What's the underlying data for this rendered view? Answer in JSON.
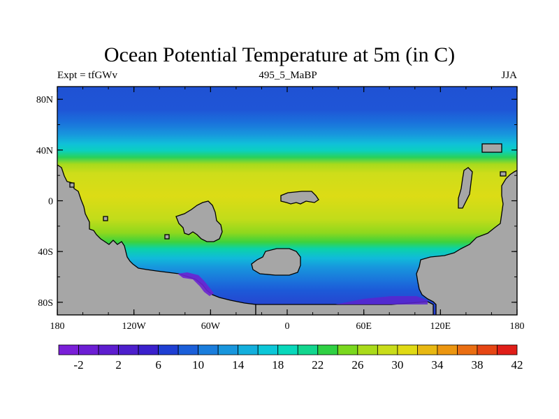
{
  "header": {
    "title": "Ocean Potential Temperature at 5m (in C)",
    "left_label": "Expt = tfGWv",
    "center_label": "495_5_MaBP",
    "right_label": "JJA"
  },
  "map": {
    "x_ticks": [
      "180",
      "120W",
      "60W",
      "0",
      "60E",
      "120E",
      "180"
    ],
    "y_ticks": [
      "80N",
      "40N",
      "0",
      "40S",
      "80S"
    ],
    "land_color": "#a6a6a6"
  },
  "colorbar": {
    "colors": [
      "#7a1fd8",
      "#6c1ed4",
      "#5d1dcf",
      "#4d1fcc",
      "#3a20cc",
      "#1f3fd3",
      "#1b5fd9",
      "#1a7ddc",
      "#1896dd",
      "#13afdd",
      "#0cc7d8",
      "#08d8bb",
      "#12d68e",
      "#2fd043",
      "#7ad81e",
      "#aadb1a",
      "#c9dd1a",
      "#e0da14",
      "#e8b812",
      "#ec9610",
      "#ea6e12",
      "#e64614",
      "#e01e18"
    ],
    "labels": [
      "-2",
      "2",
      "6",
      "10",
      "14",
      "18",
      "22",
      "26",
      "30",
      "34",
      "38",
      "42"
    ]
  }
}
